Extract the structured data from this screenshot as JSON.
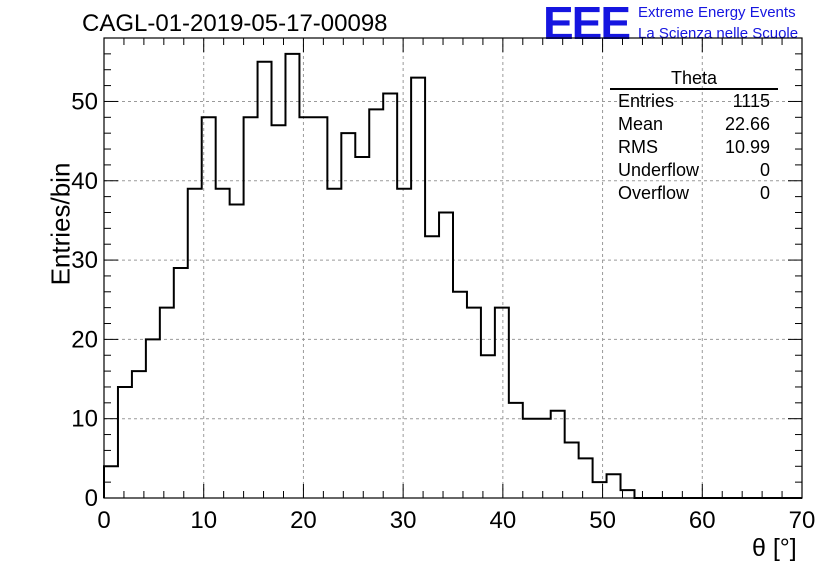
{
  "title": "CAGL-01-2019-05-17-00098",
  "logo": {
    "text": "EEE",
    "line1": "Extreme Energy Events",
    "line2": "La Scienza nelle Scuole",
    "color": "#1515e0"
  },
  "stats": {
    "title": "Theta",
    "rows": [
      {
        "label": "Entries",
        "value": "1115"
      },
      {
        "label": "Mean",
        "value": "22.66"
      },
      {
        "label": "RMS",
        "value": "10.99"
      },
      {
        "label": "Underflow",
        "value": "0"
      },
      {
        "label": "Overflow",
        "value": "0"
      }
    ]
  },
  "chart_data": {
    "type": "bar",
    "style": "step-histogram",
    "title": "CAGL-01-2019-05-17-00098",
    "xlabel": "θ [°]",
    "ylabel": "Entries/bin",
    "xlim": [
      0,
      70
    ],
    "ylim": [
      0,
      58
    ],
    "x_ticks": [
      "0",
      "10",
      "20",
      "30",
      "40",
      "50",
      "60",
      "70"
    ],
    "y_ticks": [
      "0",
      "10",
      "20",
      "30",
      "40",
      "50"
    ],
    "x_tick_values": [
      0,
      10,
      20,
      30,
      40,
      50,
      60,
      70
    ],
    "y_tick_values": [
      0,
      10,
      20,
      30,
      40,
      50
    ],
    "grid": true,
    "bin_width": 1.4,
    "bin_start": 0,
    "values": [
      4,
      14,
      16,
      20,
      24,
      29,
      39,
      48,
      39,
      37,
      48,
      55,
      47,
      56,
      48,
      48,
      39,
      46,
      43,
      49,
      51,
      39,
      53,
      33,
      36,
      26,
      24,
      18,
      24,
      12,
      10,
      10,
      11,
      7,
      5,
      2,
      3,
      1,
      0,
      0,
      0,
      0,
      0,
      0,
      0,
      0,
      0,
      0,
      0,
      0
    ]
  }
}
